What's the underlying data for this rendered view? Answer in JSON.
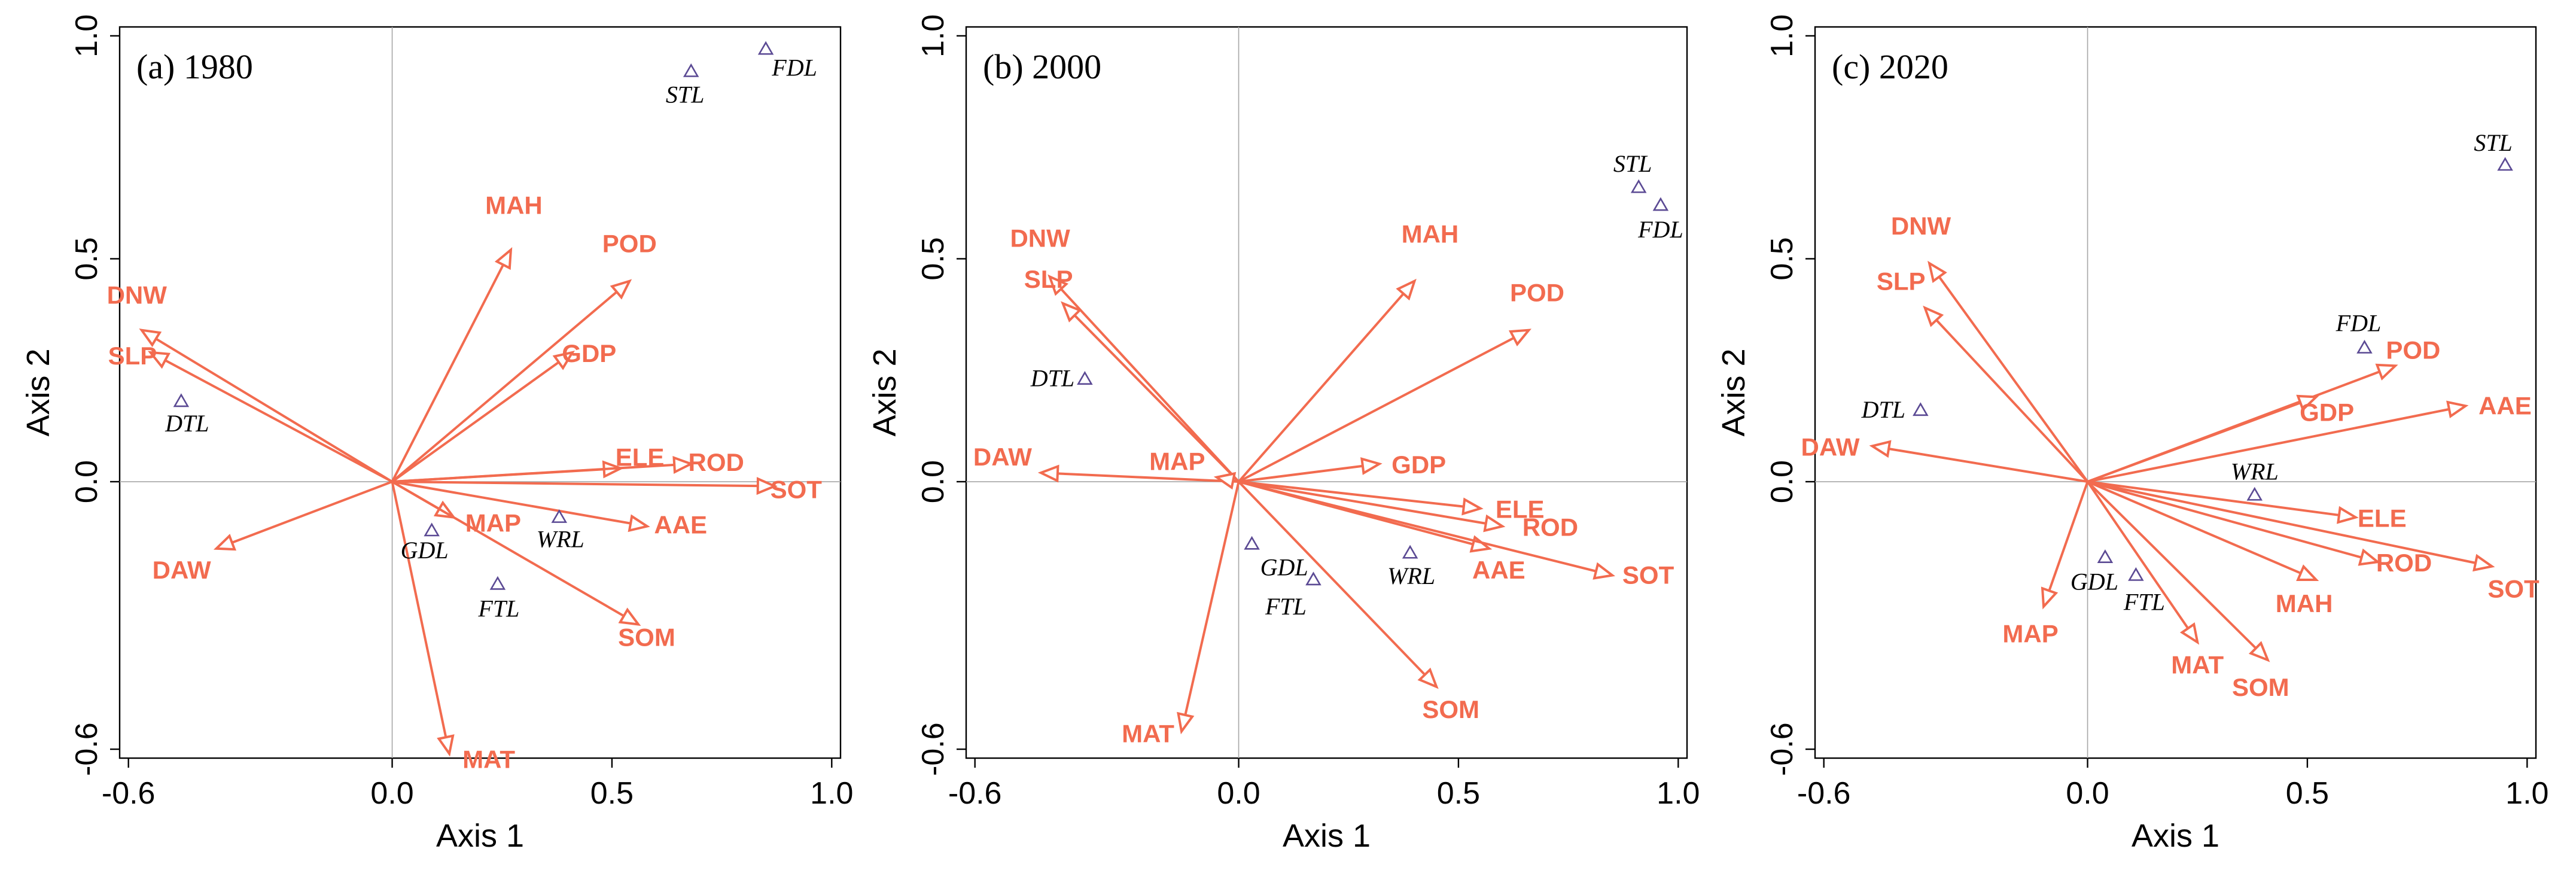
{
  "chart_data": [
    {
      "type": "scatter",
      "title": "(a) 1980",
      "xlabel": "Axis 1",
      "ylabel": "Axis 2",
      "xlim": [
        -0.62,
        1.02
      ],
      "ylim": [
        -0.62,
        1.02
      ],
      "xticks": [
        "-0.6",
        "0.0",
        "0.5",
        "1.0"
      ],
      "yticks": [
        "-0.6",
        "0.0",
        "0.5",
        "1.0"
      ],
      "arrows": [
        {
          "name": "MAH",
          "x": 0.27,
          "y": 0.52
        },
        {
          "name": "POD",
          "x": 0.54,
          "y": 0.45
        },
        {
          "name": "GDP",
          "x": 0.41,
          "y": 0.29
        },
        {
          "name": "DNW",
          "x": -0.57,
          "y": 0.34
        },
        {
          "name": "SLP",
          "x": -0.55,
          "y": 0.29
        },
        {
          "name": "ELE",
          "x": 0.52,
          "y": 0.03
        },
        {
          "name": "ROD",
          "x": 0.68,
          "y": 0.04
        },
        {
          "name": "SOT",
          "x": 0.87,
          "y": -0.01
        },
        {
          "name": "AAE",
          "x": 0.58,
          "y": -0.1
        },
        {
          "name": "MAP",
          "x": 0.14,
          "y": -0.08
        },
        {
          "name": "DAW",
          "x": -0.4,
          "y": -0.15
        },
        {
          "name": "SOM",
          "x": 0.56,
          "y": -0.32
        },
        {
          "name": "MAT",
          "x": 0.13,
          "y": -0.61
        }
      ],
      "sites": [
        {
          "name": "DTL",
          "x": -0.48,
          "y": 0.18
        },
        {
          "name": "STL",
          "x": 0.68,
          "y": 0.92
        },
        {
          "name": "FDL",
          "x": 0.85,
          "y": 0.97
        },
        {
          "name": "WRL",
          "x": 0.38,
          "y": -0.08
        },
        {
          "name": "GDL",
          "x": 0.09,
          "y": -0.11
        },
        {
          "name": "FTL",
          "x": 0.24,
          "y": -0.23
        }
      ]
    },
    {
      "type": "scatter",
      "title": "(b) 2000",
      "xlabel": "Axis 1",
      "ylabel": "Axis 2",
      "xlim": [
        -0.62,
        1.02
      ],
      "ylim": [
        -0.62,
        1.02
      ],
      "xticks": [
        "-0.6",
        "0.0",
        "0.5",
        "1.0"
      ],
      "yticks": [
        "-0.6",
        "0.0",
        "0.5",
        "1.0"
      ],
      "arrows": [
        {
          "name": "DNW",
          "x": -0.43,
          "y": 0.46
        },
        {
          "name": "SLP",
          "x": -0.4,
          "y": 0.4
        },
        {
          "name": "MAH",
          "x": 0.4,
          "y": 0.45
        },
        {
          "name": "POD",
          "x": 0.66,
          "y": 0.34
        },
        {
          "name": "DAW",
          "x": -0.45,
          "y": 0.02
        },
        {
          "name": "MAP",
          "x": -0.05,
          "y": 0.01
        },
        {
          "name": "GDP",
          "x": 0.32,
          "y": 0.04
        },
        {
          "name": "ELE",
          "x": 0.55,
          "y": -0.06
        },
        {
          "name": "ROD",
          "x": 0.6,
          "y": -0.1
        },
        {
          "name": "AAE",
          "x": 0.57,
          "y": -0.15
        },
        {
          "name": "SOT",
          "x": 0.85,
          "y": -0.21
        },
        {
          "name": "SOM",
          "x": 0.45,
          "y": -0.46
        },
        {
          "name": "MAT",
          "x": -0.13,
          "y": -0.56
        }
      ],
      "sites": [
        {
          "name": "STL",
          "x": 0.91,
          "y": 0.66
        },
        {
          "name": "FDL",
          "x": 0.96,
          "y": 0.62
        },
        {
          "name": "DTL",
          "x": -0.35,
          "y": 0.23
        },
        {
          "name": "WRL",
          "x": 0.39,
          "y": -0.16
        },
        {
          "name": "GDL",
          "x": 0.03,
          "y": -0.14
        },
        {
          "name": "FTL",
          "x": 0.17,
          "y": -0.22
        }
      ]
    },
    {
      "type": "scatter",
      "title": "(c) 2020",
      "xlabel": "Axis 1",
      "ylabel": "Axis 2",
      "xlim": [
        -0.62,
        1.02
      ],
      "ylim": [
        -0.62,
        1.02
      ],
      "xticks": [
        "-0.6",
        "0.0",
        "0.5",
        "1.0"
      ],
      "yticks": [
        "-0.6",
        "0.0",
        "0.5",
        "1.0"
      ],
      "arrows": [
        {
          "name": "DNW",
          "x": -0.36,
          "y": 0.49
        },
        {
          "name": "SLP",
          "x": -0.37,
          "y": 0.39
        },
        {
          "name": "POD",
          "x": 0.7,
          "y": 0.26
        },
        {
          "name": "GDP",
          "x": 0.52,
          "y": 0.19
        },
        {
          "name": "AAE",
          "x": 0.86,
          "y": 0.17
        },
        {
          "name": "DAW",
          "x": -0.49,
          "y": 0.08
        },
        {
          "name": "ELE",
          "x": 0.61,
          "y": -0.08
        },
        {
          "name": "ROD",
          "x": 0.66,
          "y": -0.18
        },
        {
          "name": "SOT",
          "x": 0.92,
          "y": -0.19
        },
        {
          "name": "MAH",
          "x": 0.52,
          "y": -0.22
        },
        {
          "name": "MAP",
          "x": -0.1,
          "y": -0.28
        },
        {
          "name": "MAT",
          "x": 0.25,
          "y": -0.36
        },
        {
          "name": "SOM",
          "x": 0.41,
          "y": -0.4
        }
      ],
      "sites": [
        {
          "name": "STL",
          "x": 0.95,
          "y": 0.71
        },
        {
          "name": "FDL",
          "x": 0.63,
          "y": 0.3
        },
        {
          "name": "DTL",
          "x": -0.38,
          "y": 0.16
        },
        {
          "name": "WRL",
          "x": 0.38,
          "y": -0.03
        },
        {
          "name": "GDL",
          "x": 0.04,
          "y": -0.17
        },
        {
          "name": "FTL",
          "x": 0.11,
          "y": -0.21
        }
      ]
    }
  ]
}
